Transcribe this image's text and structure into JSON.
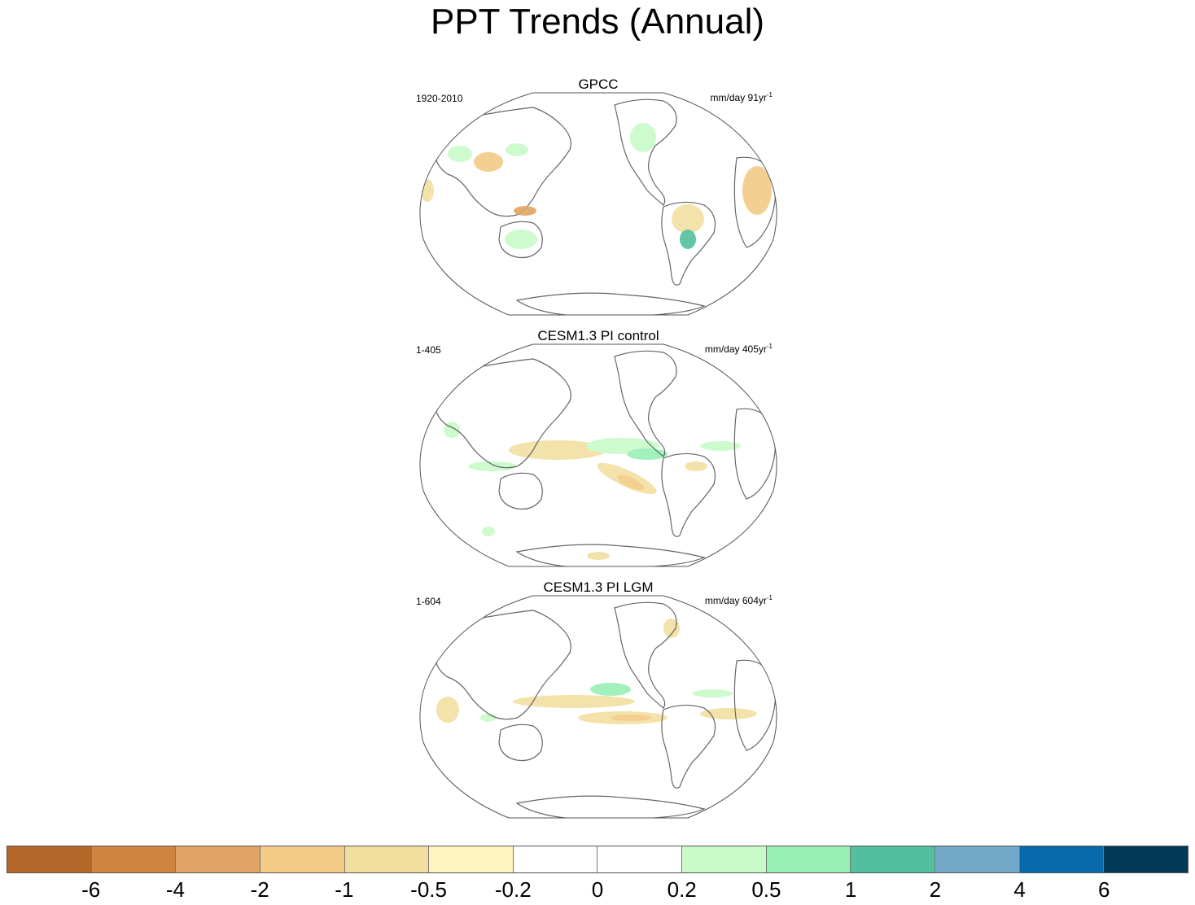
{
  "title": "PPT Trends (Annual)",
  "panels": [
    {
      "title": "GPCC",
      "period": "1920-2010",
      "units": "mm/day 91yr",
      "units_sup": "-1"
    },
    {
      "title": "CESM1.3 PI control",
      "period": "1-405",
      "units": "mm/day 405yr",
      "units_sup": "-1"
    },
    {
      "title": "CESM1.3 PI LGM",
      "period": "1-604",
      "units": "mm/day 604yr",
      "units_sup": "-1"
    }
  ],
  "colorbar": {
    "colors": [
      "#b5682a",
      "#cf853f",
      "#e0a565",
      "#f2ca85",
      "#f2dfa0",
      "#fff4bf",
      "#ffffff",
      "#ffffff",
      "#c8fbc8",
      "#98efb4",
      "#52bf9f",
      "#73a9c8",
      "#066aab",
      "#023858"
    ],
    "labels": [
      "-6",
      "-4",
      "-2",
      "-1",
      "-0.5",
      "-0.2",
      "0",
      "0.2",
      "0.5",
      "1",
      "2",
      "4",
      "6"
    ]
  },
  "chart_data": {
    "type": "heatmap",
    "title": "PPT Trends (Annual)",
    "projection": "Robinson, Pacific-centered",
    "variable": "precipitation trend",
    "levels": [
      -6,
      -4,
      -2,
      -1,
      -0.5,
      -0.2,
      0,
      0.2,
      0.5,
      1,
      2,
      4,
      6
    ],
    "maps": [
      {
        "name": "GPCC",
        "period": "1920-2010",
        "units": "mm/day 91yr-1"
      },
      {
        "name": "CESM1.3 PI control",
        "period": "1-405",
        "units": "mm/day 405yr-1"
      },
      {
        "name": "CESM1.3 PI LGM",
        "period": "1-604",
        "units": "mm/day 604yr-1"
      }
    ]
  }
}
